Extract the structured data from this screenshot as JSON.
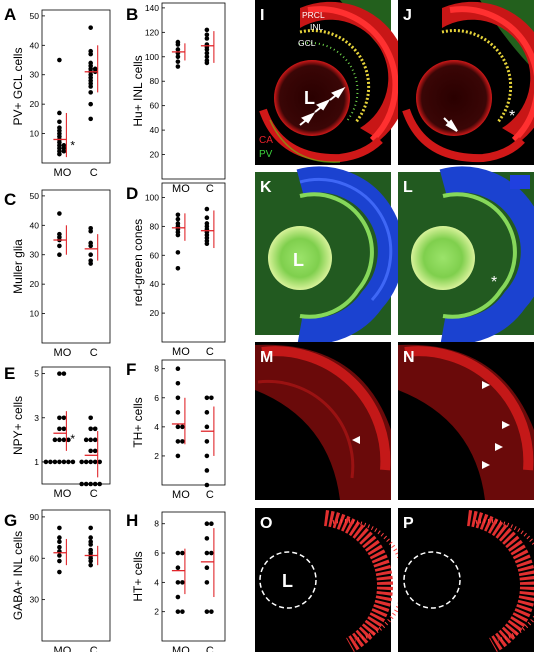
{
  "chart_data": [
    {
      "panel": "A",
      "type": "scatter",
      "ylabel": "PV+  GCL cells",
      "categories": [
        "MO",
        "C"
      ],
      "yticks": [
        10,
        20,
        30,
        40,
        50
      ],
      "ylim": [
        0,
        52
      ],
      "series": [
        {
          "values": [
            35,
            17,
            14,
            12,
            11,
            10,
            9,
            8,
            7,
            6,
            6,
            5,
            5,
            4,
            4,
            3
          ]
        },
        {
          "values": [
            46,
            38,
            37,
            34,
            33,
            32,
            32,
            31,
            31,
            30,
            29,
            28,
            27,
            26,
            24,
            20,
            15
          ]
        }
      ],
      "means": [
        8,
        31
      ],
      "sd": [
        [
          2,
          17
        ],
        [
          24,
          40
        ]
      ],
      "annotation": "*"
    },
    {
      "panel": "B",
      "type": "scatter",
      "ylabel": "Hu+  INL cells",
      "categories": [
        "MO",
        "C"
      ],
      "yticks": [
        20,
        40,
        60,
        80,
        100,
        120,
        140
      ],
      "ylim": [
        0,
        144
      ],
      "series": [
        {
          "values": [
            112,
            110,
            106,
            103,
            100,
            96,
            92
          ]
        },
        {
          "values": [
            122,
            118,
            115,
            110,
            108,
            106,
            103,
            100,
            97,
            95
          ]
        }
      ],
      "means": [
        104,
        109
      ],
      "sd": [
        [
          97,
          111
        ],
        [
          95,
          121
        ]
      ]
    },
    {
      "panel": "C",
      "type": "scatter",
      "ylabel": "Muller glia",
      "categories": [
        "MO",
        "C"
      ],
      "yticks": [
        10,
        20,
        30,
        40,
        50
      ],
      "ylim": [
        0,
        52
      ],
      "series": [
        {
          "values": [
            44,
            37,
            36,
            35,
            33,
            30
          ]
        },
        {
          "values": [
            39,
            38,
            34,
            33,
            30,
            28,
            27
          ]
        }
      ],
      "means": [
        35,
        32
      ],
      "sd": [
        [
          30,
          40
        ],
        [
          28,
          37
        ]
      ]
    },
    {
      "panel": "D",
      "type": "scatter",
      "ylabel": "red-green  cones",
      "categories": [
        "MO",
        "C"
      ],
      "yticks": [
        20,
        40,
        60,
        80,
        100
      ],
      "ylim": [
        0,
        110
      ],
      "series": [
        {
          "values": [
            88,
            85,
            82,
            80,
            78,
            76,
            74,
            62,
            51
          ]
        },
        {
          "values": [
            92,
            86,
            82,
            80,
            78,
            76,
            74,
            72,
            70,
            68
          ]
        }
      ],
      "means": [
        79,
        77
      ],
      "sd": [
        [
          70,
          89
        ],
        [
          65,
          91
        ]
      ]
    },
    {
      "panel": "E",
      "type": "scatter",
      "ylabel": "NPY+  cells",
      "categories": [
        "MO",
        "C"
      ],
      "yticks": [
        1,
        3,
        5
      ],
      "ylim": [
        0,
        5.3
      ],
      "series": [
        {
          "values": [
            5,
            5,
            3,
            3,
            2.5,
            2.5,
            2,
            2,
            2,
            2,
            1,
            1,
            1,
            1,
            1,
            1,
            1
          ]
        },
        {
          "values": [
            3,
            2.5,
            2.5,
            2,
            2,
            2,
            1.5,
            1.5,
            1,
            1,
            1,
            1,
            1,
            0,
            0,
            0,
            0,
            0
          ]
        }
      ],
      "means": [
        2.3,
        1.3
      ],
      "sd": [
        [
          1.5,
          3.3
        ],
        [
          0.3,
          2.4
        ]
      ],
      "annotation": "*"
    },
    {
      "panel": "F",
      "type": "scatter",
      "ylabel": "TH+  cells",
      "categories": [
        "MO",
        "C"
      ],
      "yticks": [
        2,
        4,
        6,
        8
      ],
      "ylim": [
        0,
        8.6
      ],
      "series": [
        {
          "values": [
            8,
            7,
            6,
            5,
            4,
            4,
            3,
            3,
            2
          ]
        },
        {
          "values": [
            6,
            6,
            5,
            4,
            3,
            2,
            1,
            0
          ]
        }
      ],
      "means": [
        4.2,
        3.7
      ],
      "sd": [
        [
          2.8,
          6
        ],
        [
          2,
          5.4
        ]
      ]
    },
    {
      "panel": "G",
      "type": "scatter",
      "ylabel": "GABA+  INL cells",
      "categories": [
        "MO",
        "C"
      ],
      "yticks": [
        30,
        60,
        90
      ],
      "ylim": [
        0,
        95
      ],
      "series": [
        {
          "values": [
            82,
            75,
            72,
            68,
            65,
            62,
            58,
            50
          ]
        },
        {
          "values": [
            82,
            75,
            72,
            70,
            66,
            64,
            62,
            60,
            58,
            55
          ]
        }
      ],
      "means": [
        64,
        62
      ],
      "sd": [
        [
          55,
          74
        ],
        [
          55,
          69
        ]
      ]
    },
    {
      "panel": "H",
      "type": "scatter",
      "ylabel": "HT+  cells",
      "categories": [
        "MO",
        "C"
      ],
      "yticks": [
        2,
        4,
        6,
        8
      ],
      "ylim": [
        0,
        8.8
      ],
      "series": [
        {
          "values": [
            6,
            6,
            5,
            4,
            4,
            3,
            2,
            2
          ]
        },
        {
          "values": [
            8,
            8,
            7,
            6,
            6,
            5,
            4,
            2,
            2
          ]
        }
      ],
      "means": [
        4.8,
        5.4
      ],
      "sd": [
        [
          3.2,
          6.3
        ],
        [
          3,
          7.7
        ]
      ]
    }
  ],
  "panel_letters": {
    "A": "A",
    "B": "B",
    "C": "C",
    "D": "D",
    "E": "E",
    "F": "F",
    "G": "G",
    "H": "H",
    "I": "I",
    "J": "J",
    "K": "K",
    "L": "L",
    "M": "M",
    "N": "N",
    "O": "O",
    "P": "P"
  },
  "micrographs": {
    "I": {
      "labels": {
        "prcl": "PRCL",
        "inl": "INL",
        "gcl": "GCL",
        "lens": "L"
      },
      "legend": {
        "ca": "CA",
        "pv": "PV"
      }
    },
    "K": {
      "lens": "L"
    },
    "O": {
      "lens": "L"
    }
  },
  "colors": {
    "mean_line": "#e0262b",
    "ca": "#e8202a",
    "pv": "#3cd23c",
    "cones": "#2a4ee0",
    "background": "#000000"
  }
}
